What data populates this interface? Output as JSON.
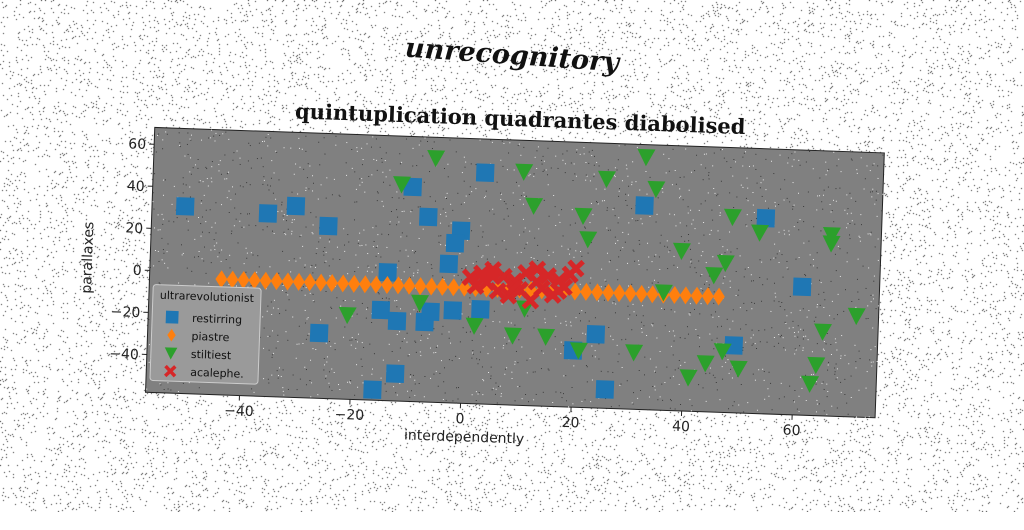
{
  "headline": "unrecognitory",
  "chart_data": {
    "type": "scatter",
    "title": "quintuplication quadrantes diabolised",
    "xlabel": "interdependently",
    "ylabel": "parallaxes",
    "xlim": [
      -57,
      75
    ],
    "ylim": [
      -58,
      68
    ],
    "xticks": [
      -40,
      -20,
      0,
      20,
      40,
      60
    ],
    "yticks": [
      -40,
      -20,
      0,
      20,
      40,
      60
    ],
    "grid": false,
    "legend": {
      "title": "ultrarevolutionist",
      "placement": "lower-left"
    },
    "colors": {
      "plot_background": "#808080"
    },
    "series": [
      {
        "name": "restirring",
        "marker": "square",
        "color": "#1f77b4",
        "points": [
          [
            -51,
            31
          ],
          [
            -36,
            29
          ],
          [
            -31,
            33
          ],
          [
            -25,
            24
          ],
          [
            -26,
            -27
          ],
          [
            -10,
            44
          ],
          [
            -7,
            30
          ],
          [
            3,
            52
          ],
          [
            -1,
            24
          ],
          [
            -2,
            18
          ],
          [
            -3,
            8
          ],
          [
            -14,
            3
          ],
          [
            -15,
            -15
          ],
          [
            -12,
            -20
          ],
          [
            -7,
            -20
          ],
          [
            -6,
            -15
          ],
          [
            -2,
            -14
          ],
          [
            3,
            -13
          ],
          [
            -16,
            -53
          ],
          [
            -12,
            -45
          ],
          [
            20,
            -31
          ],
          [
            24,
            -23
          ],
          [
            26,
            -49
          ],
          [
            32,
            39
          ],
          [
            49,
            -26
          ],
          [
            54,
            35
          ],
          [
            61,
            3
          ]
        ]
      },
      {
        "name": "piastre",
        "marker": "diamond",
        "color": "#ff7f0e",
        "points": [
          [
            -44,
            -3
          ],
          [
            -42,
            -3
          ],
          [
            -40,
            -3
          ],
          [
            -38,
            -3
          ],
          [
            -36,
            -3
          ],
          [
            -34,
            -3
          ],
          [
            -32,
            -3
          ],
          [
            -30,
            -3
          ],
          [
            -28,
            -3
          ],
          [
            -26,
            -3
          ],
          [
            -24,
            -3
          ],
          [
            -22,
            -3
          ],
          [
            -20,
            -3
          ],
          [
            -18,
            -3
          ],
          [
            -16,
            -3
          ],
          [
            -14,
            -3
          ],
          [
            -12,
            -3
          ],
          [
            -10,
            -3
          ],
          [
            -8,
            -3
          ],
          [
            -6,
            -3
          ],
          [
            -4,
            -3
          ],
          [
            -2,
            -3
          ],
          [
            0,
            -3
          ],
          [
            2,
            -3
          ],
          [
            4,
            -3
          ],
          [
            6,
            -3
          ],
          [
            8,
            -3
          ],
          [
            10,
            -3
          ],
          [
            12,
            -3
          ],
          [
            14,
            -3
          ],
          [
            16,
            -3
          ],
          [
            18,
            -3
          ],
          [
            20,
            -3
          ],
          [
            22,
            -3
          ],
          [
            24,
            -3
          ],
          [
            26,
            -3
          ],
          [
            28,
            -3
          ],
          [
            30,
            -3
          ],
          [
            32,
            -3
          ],
          [
            34,
            -3
          ],
          [
            36,
            -3
          ],
          [
            38,
            -3
          ],
          [
            40,
            -3
          ],
          [
            42,
            -3
          ],
          [
            44,
            -3
          ],
          [
            46,
            -3
          ]
        ]
      },
      {
        "name": "stiltiest",
        "marker": "triangle-down",
        "color": "#2ca02c",
        "points": [
          [
            -6,
            58
          ],
          [
            -12,
            45
          ],
          [
            10,
            53
          ],
          [
            12,
            37
          ],
          [
            32,
            62
          ],
          [
            34,
            47
          ],
          [
            25,
            51
          ],
          [
            21,
            33
          ],
          [
            22,
            22
          ],
          [
            39,
            18
          ],
          [
            48,
            35
          ],
          [
            53,
            28
          ],
          [
            66,
            28
          ],
          [
            66,
            24
          ],
          [
            47,
            13
          ],
          [
            45,
            7
          ],
          [
            36,
            -2
          ],
          [
            -21,
            -18
          ],
          [
            -8,
            -11
          ],
          [
            2,
            -21
          ],
          [
            9,
            -25
          ],
          [
            11,
            -12
          ],
          [
            15,
            -25
          ],
          [
            21,
            -31
          ],
          [
            31,
            -31
          ],
          [
            41,
            -42
          ],
          [
            44,
            -35
          ],
          [
            47,
            -29
          ],
          [
            50,
            -37
          ],
          [
            65,
            -18
          ],
          [
            71,
            -10
          ],
          [
            64,
            -34
          ],
          [
            63,
            -43
          ]
        ]
      },
      {
        "name": "acalephe.",
        "marker": "x",
        "color": "#d62728",
        "points": [
          [
            1,
            2
          ],
          [
            3,
            4
          ],
          [
            5,
            6
          ],
          [
            7,
            3
          ],
          [
            9,
            1
          ],
          [
            11,
            5
          ],
          [
            13,
            7
          ],
          [
            15,
            4
          ],
          [
            17,
            2
          ],
          [
            19,
            5
          ],
          [
            20,
            8
          ],
          [
            2,
            -2
          ],
          [
            4,
            0
          ],
          [
            6,
            -4
          ],
          [
            8,
            -6
          ],
          [
            10,
            -3
          ],
          [
            12,
            -8
          ],
          [
            14,
            -2
          ],
          [
            16,
            -5
          ],
          [
            18,
            -1
          ],
          [
            5,
            3
          ],
          [
            9,
            -2
          ],
          [
            13,
            1
          ],
          [
            17,
            -3
          ]
        ]
      }
    ]
  }
}
